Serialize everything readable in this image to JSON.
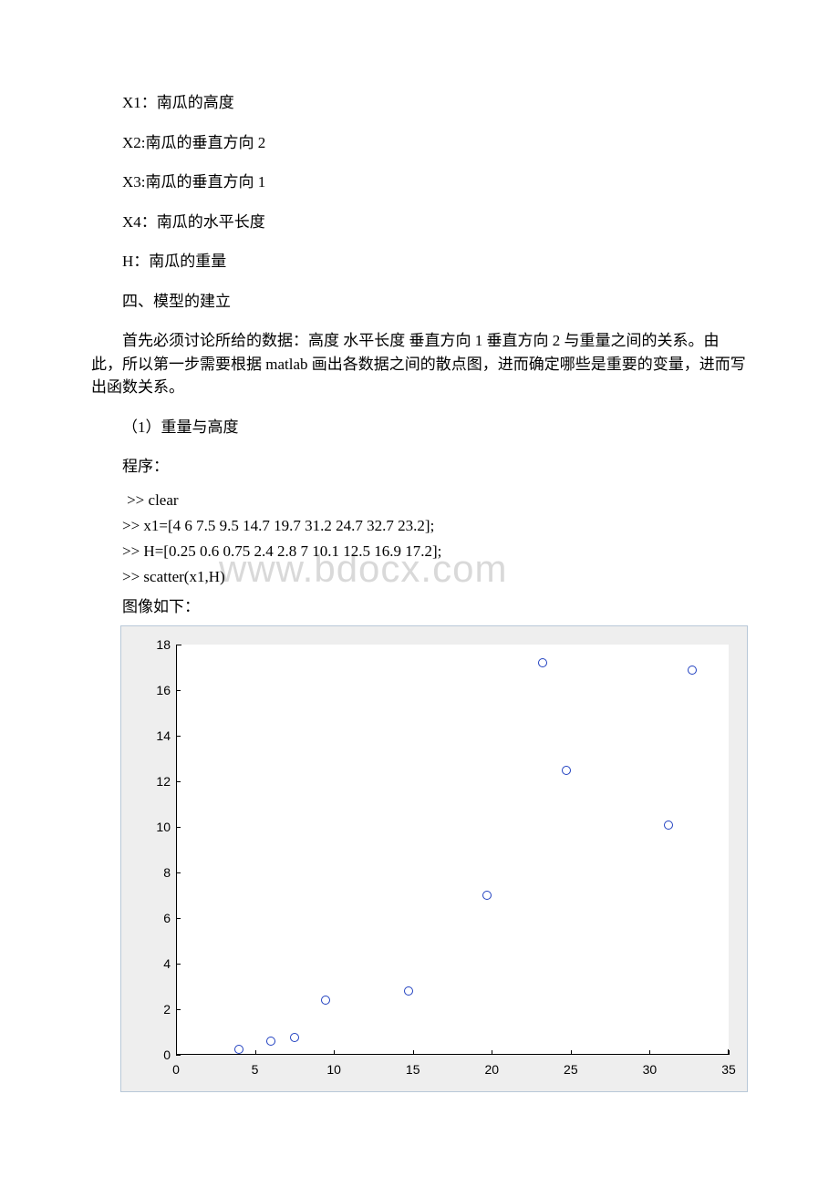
{
  "watermark": "www.bdocx.com",
  "definitions": {
    "x1": "X1：南瓜的高度",
    "x2": "X2:南瓜的垂直方向 2",
    "x3": "X3:南瓜的垂直方向 1",
    "x4": "X4：南瓜的水平长度",
    "h": "H：南瓜的重量"
  },
  "section_heading": "四、模型的建立",
  "intro_para": "首先必须讨论所给的数据：高度 水平长度 垂直方向 1 垂直方向 2 与重量之间的关系。由此，所以第一步需要根据 matlab 画出各数据之间的散点图，进而确定哪些是重要的变量，进而写出函数关系。",
  "subsection": "（1）重量与高度",
  "program_label": "程序：",
  "code": {
    "l1": ">> clear",
    "l2": ">> x1=[4 6 7.5 9.5 14.7 19.7 31.2 24.7 32.7 23.2];",
    "l3": ">> H=[0.25 0.6 0.75 2.4 2.8 7 10.1 12.5 16.9 17.2];",
    "l4": ">> scatter(x1,H)"
  },
  "image_label": "图像如下：",
  "chart": {
    "type": "scatter",
    "background_color": "#eeeeee",
    "plot_bg": "#ffffff",
    "axis_color": "#000000",
    "marker_color": "#2040c0",
    "marker_size": 8,
    "xlim": [
      0,
      35
    ],
    "ylim": [
      0,
      18
    ],
    "xticks": [
      0,
      5,
      10,
      15,
      20,
      25,
      30,
      35
    ],
    "yticks": [
      0,
      2,
      4,
      6,
      8,
      10,
      12,
      14,
      16,
      18
    ],
    "x": [
      4,
      6,
      7.5,
      9.5,
      14.7,
      19.7,
      31.2,
      24.7,
      32.7,
      23.2
    ],
    "y": [
      0.25,
      0.6,
      0.75,
      2.4,
      2.8,
      7,
      10.1,
      12.5,
      16.9,
      17.2
    ]
  }
}
